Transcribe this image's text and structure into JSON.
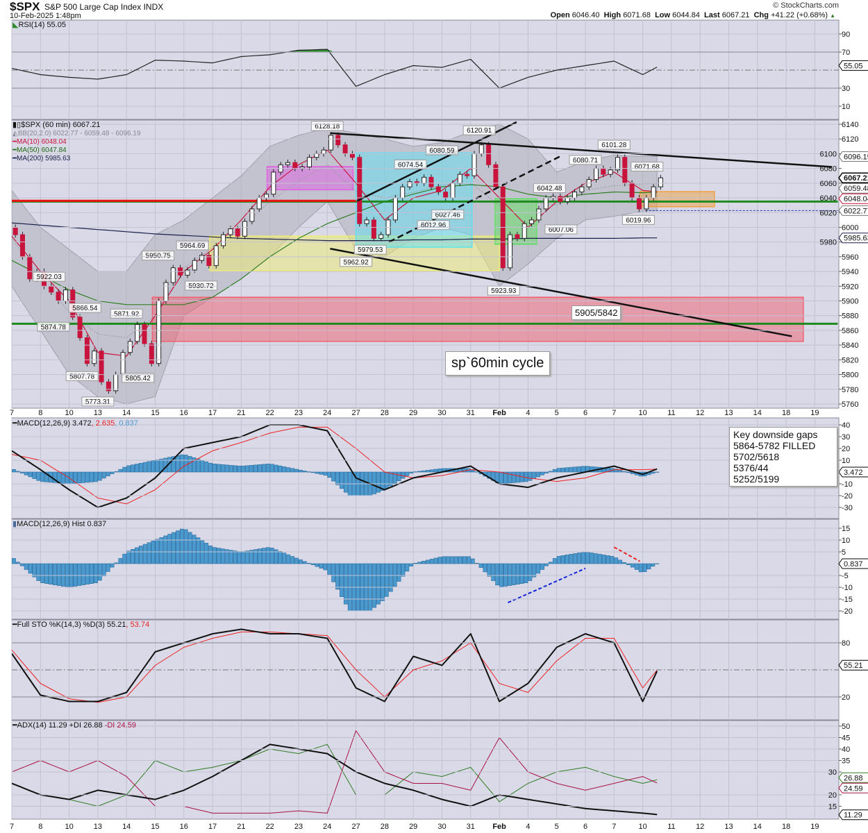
{
  "header": {
    "symbol": "$SPX",
    "name": "S&P 500 Large Cap Index",
    "exchange": "INDX",
    "datetime": "10-Feb-2025 1:48pm",
    "brand": "© StockCharts.com",
    "quote": {
      "open_label": "Open",
      "open": "6046.40",
      "high_label": "High",
      "high": "6071.68",
      "low_label": "Low",
      "low": "6044.84",
      "last_label": "Last",
      "last": "6067.21",
      "chg_label": "Chg",
      "chg": "+41.22 (+0.68%)"
    }
  },
  "legends": {
    "rsi": "RSI(14) 55.05",
    "price": "$SPX (60 min) 6067.21",
    "bb": "BB(20,2.0) 6022.77 - 6059.48 - 6096.19",
    "ma10": "MA(10) 6048.04",
    "ma50": "MA(50) 6047.84",
    "ma200": "MA(200) 5985.63",
    "macd": "MACD(12,26,9) 3.472",
    "macd_signal": ", 2.635",
    "macd_hist": ", 0.837",
    "hist": "MACD(12,26,9) Hist 0.837",
    "sto": "Full STO %K(14,3) %D(3) 55.21",
    "sto_d": ", 53.74",
    "adx": "ADX(14) 11.29 +DI 26.88",
    "adx_mdi": " -DI 24.59"
  },
  "annotations": {
    "cycle_note": "sp`60min cycle",
    "gap_zone": "5905/5842",
    "gaps_box": [
      "Key downside gaps",
      "5864-5782 FILLED",
      "5702/5618",
      "5376/44",
      "5252/5199"
    ]
  },
  "colors": {
    "panel_bg": "#d9d9e7",
    "grid": "#c2c2d2",
    "up_candle": "#ffffff",
    "down_candle": "#c8143c",
    "ma10": "#c8143c",
    "ma50": "#2e7d22",
    "ma200": "#1a1f4a",
    "bb_band": "#a8a8b4",
    "rsi_fill": "#2e8b2e",
    "hist_bar": "#4a9ad0",
    "macd_signal": "#ee2222",
    "plus_di": "#2e7d22",
    "minus_di": "#aa1144"
  },
  "chart_data": {
    "type": "candlestick",
    "title": "$SPX S&P 500 Large Cap Index (60 min)",
    "x_ticks": [
      {
        "d": 0,
        "label": "7"
      },
      {
        "d": 1,
        "label": "8"
      },
      {
        "d": 2,
        "label": "10"
      },
      {
        "d": 3,
        "label": "13"
      },
      {
        "d": 4,
        "label": "14"
      },
      {
        "d": 5,
        "label": "15"
      },
      {
        "d": 6,
        "label": "16"
      },
      {
        "d": 7,
        "label": "17"
      },
      {
        "d": 8,
        "label": "21"
      },
      {
        "d": 9,
        "label": "22"
      },
      {
        "d": 10,
        "label": "23"
      },
      {
        "d": 11,
        "label": "24"
      },
      {
        "d": 12,
        "label": "27"
      },
      {
        "d": 13,
        "label": "28"
      },
      {
        "d": 14,
        "label": "29"
      },
      {
        "d": 15,
        "label": "30"
      },
      {
        "d": 16,
        "label": "31"
      },
      {
        "d": 17,
        "label": "Feb"
      },
      {
        "d": 18,
        "label": "4"
      },
      {
        "d": 19,
        "label": "5"
      },
      {
        "d": 20,
        "label": "6"
      },
      {
        "d": 21,
        "label": "7"
      },
      {
        "d": 22,
        "label": "10"
      },
      {
        "d": 23,
        "label": "11"
      },
      {
        "d": 24,
        "label": "12"
      },
      {
        "d": 25,
        "label": "13"
      },
      {
        "d": 26,
        "label": "14"
      },
      {
        "d": 27,
        "label": "18"
      },
      {
        "d": 28,
        "label": "19"
      }
    ],
    "series_days": [
      0,
      1,
      2,
      3,
      4,
      5,
      6,
      7,
      8,
      9,
      10,
      11,
      12,
      13,
      14,
      15,
      16,
      17,
      18,
      19,
      20,
      21,
      22,
      22.6
    ],
    "price": {
      "ylim": [
        5750,
        6150
      ],
      "ticks": [
        5760,
        5780,
        5800,
        5820,
        5840,
        5860,
        5880,
        5900,
        5920,
        5940,
        5960,
        5980,
        6000,
        6020,
        6040,
        6060,
        6080,
        6100,
        6120,
        6140
      ],
      "closes_by_day": [
        [
          5990,
          5960,
          5930,
          5940
        ],
        [
          5920,
          5912,
          5900,
          5915
        ],
        [
          5878,
          5850,
          5815,
          5832
        ],
        [
          5790,
          5778,
          5800,
          5830
        ],
        [
          5845,
          5868,
          5842,
          5815
        ],
        [
          5900,
          5925,
          5945,
          5935
        ],
        [
          5942,
          5955,
          5962,
          5948
        ],
        [
          5975,
          5990,
          5998,
          5988
        ],
        [
          6008,
          6025,
          6040,
          6045
        ],
        [
          6075,
          6085,
          6088,
          6080
        ],
        [
          6082,
          6095,
          6100,
          6105
        ],
        [
          6125,
          6112,
          6100,
          6095
        ],
        [
          6005,
          6010,
          5985,
          5990
        ],
        [
          6010,
          6040,
          6055,
          6062
        ],
        [
          6060,
          6068,
          6055,
          6048
        ],
        [
          6040,
          6060,
          6072,
          6070
        ],
        [
          6100,
          6112,
          6085,
          6055
        ],
        [
          5945,
          5990,
          5985,
          6005
        ],
        [
          6010,
          6025,
          6040,
          6042
        ],
        [
          6035,
          6040,
          6048,
          6055
        ],
        [
          6065,
          6080,
          6072,
          6078
        ],
        [
          6095,
          6060,
          6040,
          6025
        ],
        [
          6040,
          6055,
          6067.21
        ]
      ],
      "ma10": [
        5988,
        5940,
        5900,
        5830,
        5825,
        5880,
        5940,
        5970,
        6010,
        6055,
        6085,
        6105,
        6060,
        6010,
        6040,
        6050,
        6080,
        6040,
        6000,
        6035,
        6060,
        6075,
        6050,
        6048.04
      ],
      "ma50": [
        5955,
        5935,
        5915,
        5900,
        5895,
        5895,
        5895,
        5905,
        5930,
        5960,
        5985,
        6005,
        6020,
        6035,
        6045,
        6055,
        6058,
        6055,
        6045,
        6040,
        6045,
        6048,
        6047,
        6047.84
      ],
      "ma200": [
        6006,
        6003,
        6000,
        5997,
        5994,
        5991,
        5989,
        5987,
        5985,
        5984,
        5983,
        5982,
        5982,
        5982,
        5983,
        5983,
        5984,
        5984,
        5985,
        5985,
        5985,
        5985,
        5985.6,
        5985.63
      ],
      "bb_upper": [
        6050,
        6000,
        5970,
        5940,
        5940,
        5990,
        6010,
        6040,
        6070,
        6110,
        6125,
        6135,
        6128,
        6120,
        6110,
        6115,
        6130,
        6140,
        6120,
        6075,
        6090,
        6098,
        6096,
        6096.19
      ],
      "bb_lower": [
        5920,
        5860,
        5800,
        5770,
        5760,
        5770,
        5880,
        5905,
        5930,
        5960,
        6000,
        6035,
        5970,
        5960,
        5985,
        6000,
        5990,
        5920,
        5950,
        5985,
        6010,
        6015,
        6022,
        6022.77
      ],
      "point_labels": [
        {
          "d": 11.0,
          "v": 6128.18,
          "label": "6128.18",
          "pos": "above"
        },
        {
          "d": 16.3,
          "v": 6120.91,
          "label": "6120.91",
          "pos": "above"
        },
        {
          "d": 21.0,
          "v": 6101.28,
          "label": "6101.28",
          "pos": "above"
        },
        {
          "d": 20.0,
          "v": 6080.71,
          "label": "6080.71",
          "pos": "above"
        },
        {
          "d": 13.9,
          "v": 6074.54,
          "label": "6074.54",
          "pos": "above"
        },
        {
          "d": 15.0,
          "v": 6080.59,
          "label": "6080.59",
          "pos": "above"
        },
        {
          "d": 22.15,
          "v": 6071.68,
          "label": "6071.68",
          "pos": "above"
        },
        {
          "d": 18.75,
          "v": 6042.48,
          "label": "6042.48",
          "pos": "above"
        },
        {
          "d": 15.2,
          "v": 6027.46,
          "label": "6027.46",
          "pos": "below"
        },
        {
          "d": 14.7,
          "v": 6012.96,
          "label": "6012.96",
          "pos": "below"
        },
        {
          "d": 19.15,
          "v": 6007.06,
          "label": "6007.06",
          "pos": "below"
        },
        {
          "d": 21.85,
          "v": 6019.96,
          "label": "6019.96",
          "pos": "below"
        },
        {
          "d": 12.5,
          "v": 5979.53,
          "label": "5979.53",
          "pos": "below"
        },
        {
          "d": 12.0,
          "v": 5962.92,
          "label": "5962.92",
          "pos": "below"
        },
        {
          "d": 17.15,
          "v": 5923.93,
          "label": "5923.93",
          "pos": "below"
        },
        {
          "d": 6.3,
          "v": 5964.69,
          "label": "5964.69",
          "pos": "above"
        },
        {
          "d": 5.1,
          "v": 5950.75,
          "label": "5950.75",
          "pos": "above"
        },
        {
          "d": 6.6,
          "v": 5930.72,
          "label": "5930.72",
          "pos": "below"
        },
        {
          "d": 1.3,
          "v": 5922.03,
          "label": "5922.03",
          "pos": "above"
        },
        {
          "d": 1.45,
          "v": 5874.78,
          "label": "5874.78",
          "pos": "below"
        },
        {
          "d": 2.55,
          "v": 5866.54,
          "label": "5866.54",
          "pos": "above"
        },
        {
          "d": 4.0,
          "v": 5871.92,
          "label": "5871.92",
          "pos": "above"
        },
        {
          "d": 2.45,
          "v": 5807.78,
          "label": "5807.78",
          "pos": "below"
        },
        {
          "d": 4.4,
          "v": 5805.42,
          "label": "5805.42",
          "pos": "below"
        },
        {
          "d": 3.0,
          "v": 5773.31,
          "label": "5773.31",
          "pos": "below"
        }
      ],
      "zones": [
        {
          "name": "magenta-zone",
          "d": [
            8.9,
            11.9
          ],
          "v": [
            6051,
            6082.5
          ],
          "color": "#e060e0"
        },
        {
          "name": "yellow-zone",
          "d": [
            6.9,
            17.0
          ],
          "v": [
            5941,
            5988
          ],
          "color": "#f0ee70"
        },
        {
          "name": "cyan-zone",
          "d": [
            12.0,
            16.05
          ],
          "v": [
            5973,
            6101
          ],
          "color": "#60e0f0"
        },
        {
          "name": "green-zone",
          "d": [
            16.85,
            18.3
          ],
          "v": [
            5977,
            6039
          ],
          "color": "#60e060"
        },
        {
          "name": "orange-zone",
          "d": [
            21.9,
            24.5
          ],
          "v": [
            6028,
            6048.5
          ],
          "color": "#f0a040"
        },
        {
          "name": "red-gap-zone",
          "d": [
            4.9,
            27.6
          ],
          "v": [
            5845,
            5905
          ],
          "color": "#f06070"
        }
      ],
      "hlines": [
        {
          "name": "green-support-line",
          "v": 6035,
          "d": [
            0,
            28.8
          ],
          "color": "#1e8a1e"
        },
        {
          "name": "red-support-line",
          "v": 6036,
          "d": [
            0,
            12.0
          ],
          "color": "#ee1111"
        },
        {
          "name": "green-gap-line",
          "v": 5869,
          "d": [
            0,
            28.8
          ],
          "color": "#1e8a1e"
        },
        {
          "name": "bb-lower-dashed-line",
          "v": 6022.77,
          "d": [
            22.1,
            28.8
          ],
          "color": "#2233aa",
          "dash": true
        }
      ],
      "trendlines": [
        {
          "name": "upper-wedge-trendline",
          "from": [
            11.1,
            6128
          ],
          "to": [
            28.6,
            6082
          ],
          "dash": false
        },
        {
          "name": "lower-wedge-trendline",
          "from": [
            11.1,
            5971
          ],
          "to": [
            27.2,
            5852
          ],
          "dash": false
        },
        {
          "name": "rising-channel-top-line",
          "from": [
            12.05,
            6036
          ],
          "to": [
            17.6,
            6143
          ],
          "dash": false
        },
        {
          "name": "rising-channel-bottom-line",
          "from": [
            13.15,
            5980
          ],
          "to": [
            19.1,
            6096
          ],
          "dash": true
        }
      ],
      "tags": [
        {
          "label": "6096.19",
          "v": 6096.19,
          "color": "#777",
          "bold": false
        },
        {
          "label": "6059.48",
          "v": 6057,
          "color": "#777",
          "bold": false
        },
        {
          "label": "6067.21",
          "v": 6067.21,
          "color": "#000",
          "bold": true
        },
        {
          "label": "6048.04",
          "v": 6048.04,
          "color": "#c8143c",
          "bold": false
        },
        {
          "label": "6022.77",
          "v": 6022.77,
          "color": "#777",
          "bold": false
        },
        {
          "label": "5985.63",
          "v": 5985.63,
          "color": "#1a1f4a",
          "bold": false
        }
      ]
    },
    "rsi": {
      "ticks": [
        10,
        30,
        70,
        90
      ],
      "overbought": 70,
      "oversold": 30,
      "mid": 50,
      "values": [
        52,
        45,
        42,
        40,
        45,
        61,
        60,
        58,
        65,
        67,
        72,
        73,
        32,
        45,
        55,
        53,
        62,
        30,
        42,
        50,
        55,
        60,
        45,
        55.05
      ],
      "tag": "55.05"
    },
    "macd": {
      "ticks": [
        40,
        30,
        20,
        10,
        -10,
        -20,
        -30
      ],
      "macd": [
        18,
        2,
        -15,
        -30,
        -22,
        -5,
        20,
        25,
        30,
        40,
        40,
        35,
        -5,
        -15,
        -5,
        0,
        5,
        -10,
        -13,
        -5,
        0,
        5,
        -2,
        3.472
      ],
      "signal": [
        15,
        10,
        -5,
        -22,
        -27,
        -15,
        5,
        18,
        25,
        33,
        38,
        38,
        20,
        0,
        -5,
        -3,
        2,
        0,
        -5,
        -8,
        -5,
        2,
        2,
        2.635
      ],
      "tag": "3.472"
    },
    "hist": {
      "ticks": [
        15,
        10,
        5,
        -5,
        -10,
        -15,
        -20
      ],
      "tag": "0.837",
      "annotations": [
        {
          "name": "blue-divergence-line",
          "from": [
            17.3,
            -16.5
          ],
          "to": [
            20.0,
            -2
          ],
          "color": "#1122dd"
        },
        {
          "name": "red-divergence-line",
          "from": [
            21.0,
            7
          ],
          "to": [
            21.9,
            1
          ],
          "color": "#ee2222"
        }
      ]
    },
    "sto": {
      "ticks": [
        80,
        20
      ],
      "upper": 80,
      "lower": 20,
      "mid": 50,
      "k": [
        68,
        22,
        15,
        15,
        25,
        70,
        80,
        90,
        95,
        90,
        90,
        85,
        30,
        15,
        65,
        55,
        90,
        15,
        35,
        75,
        90,
        80,
        15,
        55.21
      ],
      "d": [
        72,
        35,
        18,
        14,
        20,
        55,
        75,
        85,
        92,
        92,
        90,
        88,
        50,
        20,
        50,
        60,
        80,
        35,
        25,
        60,
        85,
        85,
        30,
        53.74
      ],
      "tag": "55.21"
    },
    "adx": {
      "ticks": [
        50,
        45,
        40,
        35,
        30,
        20,
        15
      ],
      "adx": [
        25,
        20,
        18,
        22,
        20,
        18,
        22,
        28,
        35,
        42,
        40,
        38,
        30,
        25,
        22,
        18,
        15,
        20,
        18,
        16,
        14,
        13,
        12,
        11.29
      ],
      "plus_di": [
        25,
        20,
        18,
        15,
        20,
        35,
        30,
        32,
        35,
        40,
        38,
        42,
        20,
        20,
        30,
        28,
        32,
        17,
        25,
        30,
        32,
        28,
        25,
        26.88
      ],
      "minus_di": [
        30,
        35,
        30,
        35,
        28,
        15,
        15,
        12,
        12,
        12,
        13,
        12,
        48,
        30,
        25,
        25,
        22,
        45,
        30,
        25,
        22,
        25,
        28,
        24.59
      ],
      "tags": [
        {
          "label": "26.88",
          "v": 27.5,
          "color": "#2e7d22"
        },
        {
          "label": "24.59",
          "v": 24.2,
          "color": "#aa1144"
        },
        {
          "label": "11.29",
          "v": 11.29,
          "color": "#000"
        }
      ]
    }
  }
}
